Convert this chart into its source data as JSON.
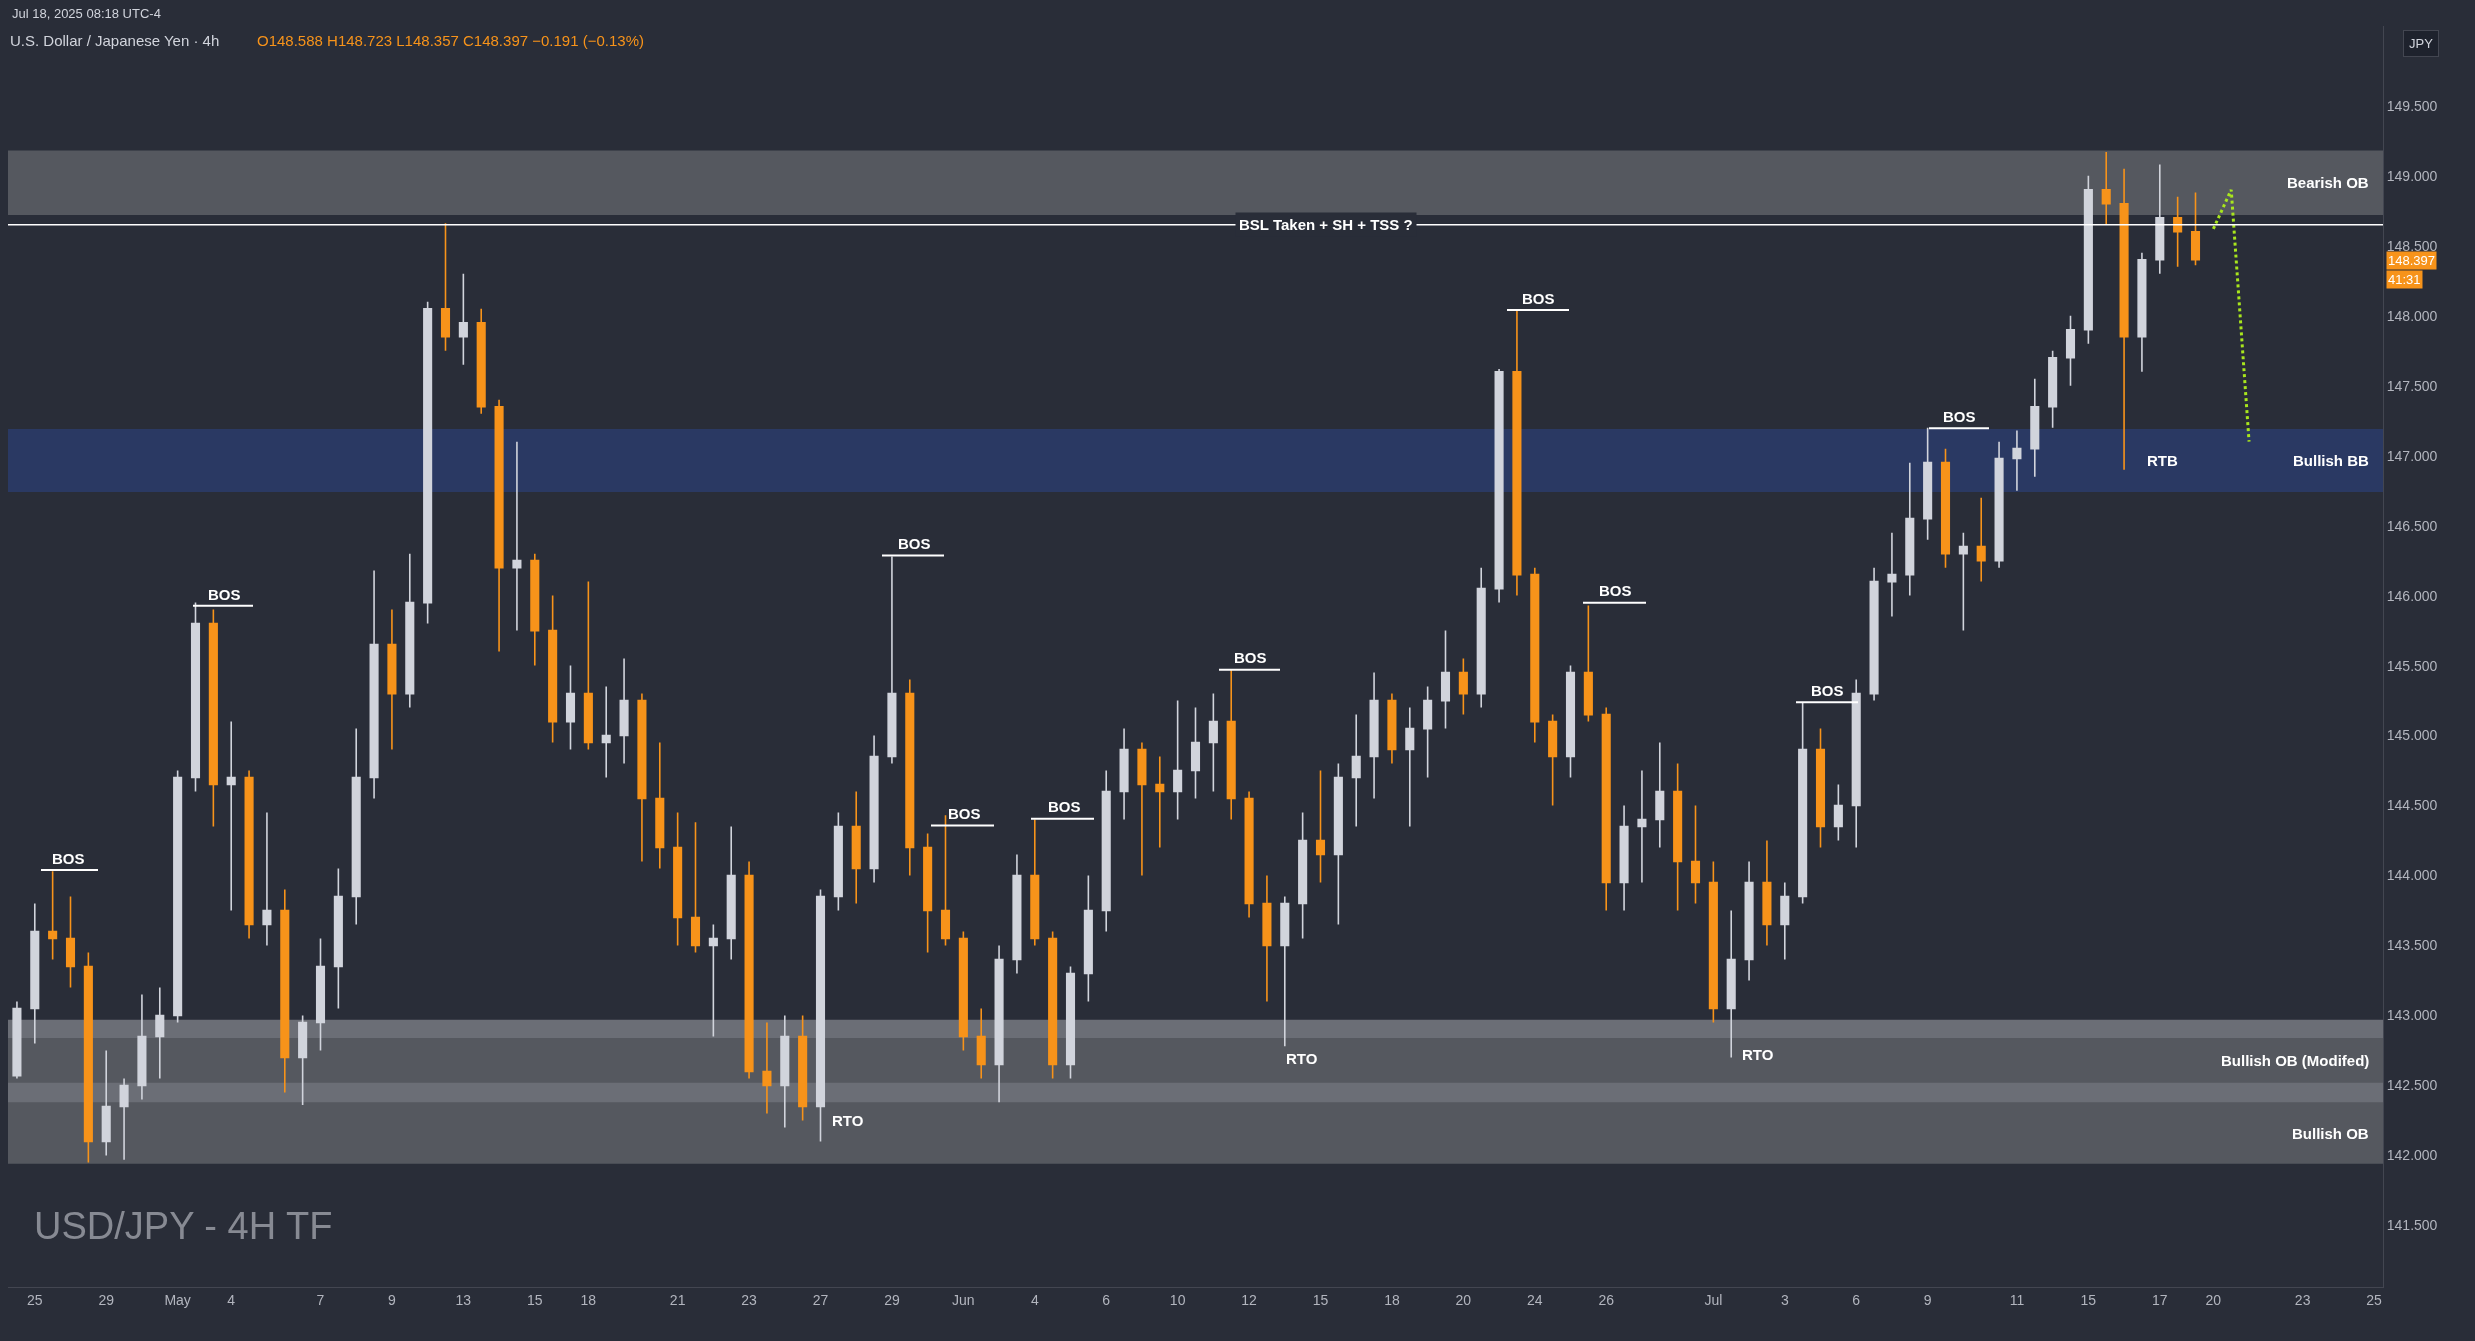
{
  "chart_data": {
    "type": "candlestick",
    "title": "U.S. Dollar / Japanese Yen · 4h",
    "subtitle": "O148.588 H148.723 L148.357 C148.397 −0.191 (−0.13%)",
    "categories": [
      null,
      "25",
      null,
      null,
      null,
      "29",
      null,
      null,
      null,
      "May",
      null,
      null,
      "4",
      null,
      null,
      null,
      null,
      "7",
      null,
      null,
      null,
      "9",
      null,
      null,
      null,
      "13",
      null,
      null,
      null,
      "15",
      null,
      null,
      "18",
      null,
      null,
      null,
      null,
      "21",
      null,
      null,
      null,
      "23",
      null,
      null,
      null,
      "27",
      null,
      null,
      null,
      "29",
      null,
      null,
      null,
      "Jun",
      null,
      null,
      null,
      "4",
      null,
      null,
      null,
      "6",
      null,
      null,
      null,
      "10",
      null,
      null,
      null,
      "12",
      null,
      null,
      null,
      "15",
      null,
      null,
      null,
      "18",
      null,
      null,
      null,
      "20",
      null,
      null,
      null,
      "24",
      null,
      null,
      null,
      "26",
      null,
      null,
      null,
      null,
      null,
      "Jul",
      null,
      null,
      null,
      "3",
      null,
      null,
      null,
      "6",
      null,
      null,
      null,
      "9",
      null,
      null,
      null,
      null,
      "11",
      null,
      null,
      null,
      "15",
      null,
      null,
      null,
      "17",
      null,
      null,
      "20",
      null,
      null,
      null,
      null,
      "23",
      null,
      null,
      null,
      "25"
    ],
    "ohlc": [
      [
        142.57,
        143.1,
        142.55,
        143.05
      ],
      [
        143.05,
        143.8,
        142.8,
        143.6
      ],
      [
        143.6,
        144.03,
        143.4,
        143.55
      ],
      [
        143.55,
        143.85,
        143.2,
        143.35
      ],
      [
        143.35,
        143.45,
        141.95,
        142.1
      ],
      [
        142.1,
        142.75,
        142.0,
        142.35
      ],
      [
        142.35,
        142.55,
        141.97,
        142.5
      ],
      [
        142.5,
        143.15,
        142.4,
        142.85
      ],
      [
        142.85,
        143.2,
        142.55,
        143.0
      ],
      [
        143.0,
        144.75,
        142.95,
        144.7
      ],
      [
        144.7,
        145.95,
        144.6,
        145.8
      ],
      [
        145.8,
        145.9,
        144.35,
        144.65
      ],
      [
        144.65,
        145.1,
        143.75,
        144.7
      ],
      [
        144.7,
        144.75,
        143.55,
        143.65
      ],
      [
        143.65,
        144.45,
        143.5,
        143.75
      ],
      [
        143.75,
        143.9,
        142.45,
        142.7
      ],
      [
        142.7,
        143.0,
        142.36,
        142.95
      ],
      [
        142.95,
        143.55,
        142.75,
        143.35
      ],
      [
        143.35,
        144.05,
        143.05,
        143.85
      ],
      [
        143.85,
        145.05,
        143.65,
        144.7
      ],
      [
        144.7,
        146.18,
        144.55,
        145.65
      ],
      [
        145.65,
        145.9,
        144.9,
        145.3
      ],
      [
        145.3,
        146.3,
        145.2,
        145.95
      ],
      [
        145.95,
        148.1,
        145.8,
        148.05
      ],
      [
        148.05,
        148.66,
        147.75,
        147.85
      ],
      [
        147.85,
        148.3,
        147.65,
        147.95
      ],
      [
        147.95,
        148.05,
        147.3,
        147.35
      ],
      [
        147.35,
        147.4,
        145.6,
        146.2
      ],
      [
        146.2,
        147.1,
        145.75,
        146.25
      ],
      [
        146.25,
        146.3,
        145.5,
        145.75
      ],
      [
        145.75,
        146.0,
        144.95,
        145.1
      ],
      [
        145.1,
        145.5,
        144.9,
        145.3
      ],
      [
        145.3,
        146.1,
        144.9,
        144.95
      ],
      [
        144.95,
        145.35,
        144.7,
        145.0
      ],
      [
        145.0,
        145.55,
        144.8,
        145.25
      ],
      [
        145.25,
        145.3,
        144.1,
        144.55
      ],
      [
        144.55,
        144.95,
        144.05,
        144.2
      ],
      [
        144.2,
        144.45,
        143.5,
        143.7
      ],
      [
        143.7,
        144.38,
        143.45,
        143.5
      ],
      [
        143.5,
        143.65,
        142.85,
        143.55
      ],
      [
        143.55,
        144.35,
        143.4,
        144.0
      ],
      [
        144.0,
        144.1,
        142.55,
        142.6
      ],
      [
        142.6,
        142.95,
        142.3,
        142.5
      ],
      [
        142.5,
        143.0,
        142.2,
        142.85
      ],
      [
        142.85,
        143.0,
        142.25,
        142.35
      ],
      [
        142.35,
        143.9,
        142.1,
        143.85
      ],
      [
        143.85,
        144.45,
        143.75,
        144.35
      ],
      [
        144.35,
        144.6,
        143.8,
        144.05
      ],
      [
        144.05,
        145.0,
        143.95,
        144.85
      ],
      [
        144.85,
        146.28,
        144.8,
        145.3
      ],
      [
        145.3,
        145.4,
        144.0,
        144.2
      ],
      [
        144.2,
        144.3,
        143.45,
        143.75
      ],
      [
        143.75,
        144.43,
        143.5,
        143.55
      ],
      [
        143.55,
        143.6,
        142.75,
        142.85
      ],
      [
        142.85,
        143.05,
        142.55,
        142.65
      ],
      [
        142.65,
        143.5,
        142.38,
        143.4
      ],
      [
        143.4,
        144.15,
        143.3,
        144.0
      ],
      [
        144.0,
        144.4,
        143.5,
        143.55
      ],
      [
        143.55,
        143.6,
        142.55,
        142.65
      ],
      [
        142.65,
        143.35,
        142.55,
        143.3
      ],
      [
        143.3,
        144.0,
        143.1,
        143.75
      ],
      [
        143.75,
        144.75,
        143.6,
        144.6
      ],
      [
        144.6,
        145.05,
        144.4,
        144.9
      ],
      [
        144.9,
        144.95,
        144.0,
        144.65
      ],
      [
        144.65,
        144.85,
        144.2,
        144.6
      ],
      [
        144.6,
        145.25,
        144.4,
        144.75
      ],
      [
        144.75,
        145.2,
        144.55,
        144.95
      ],
      [
        144.95,
        145.3,
        144.6,
        145.1
      ],
      [
        145.1,
        145.47,
        144.4,
        144.55
      ],
      [
        144.55,
        144.6,
        143.7,
        143.8
      ],
      [
        143.8,
        144.0,
        143.1,
        143.5
      ],
      [
        143.5,
        143.85,
        142.78,
        143.8
      ],
      [
        143.8,
        144.45,
        143.55,
        144.25
      ],
      [
        144.25,
        144.75,
        143.95,
        144.15
      ],
      [
        144.15,
        144.8,
        143.65,
        144.7
      ],
      [
        144.7,
        145.15,
        144.35,
        144.85
      ],
      [
        144.85,
        145.45,
        144.55,
        145.25
      ],
      [
        145.25,
        145.3,
        144.8,
        144.9
      ],
      [
        144.9,
        145.2,
        144.35,
        145.05
      ],
      [
        145.05,
        145.35,
        144.7,
        145.25
      ],
      [
        145.25,
        145.75,
        145.05,
        145.45
      ],
      [
        145.45,
        145.55,
        145.15,
        145.3
      ],
      [
        145.3,
        146.2,
        145.2,
        146.05
      ],
      [
        146.05,
        147.62,
        145.95,
        147.6
      ],
      [
        147.6,
        148.04,
        146.0,
        146.15
      ],
      [
        146.15,
        146.2,
        144.95,
        145.1
      ],
      [
        145.1,
        145.15,
        144.5,
        144.85
      ],
      [
        144.85,
        145.5,
        144.7,
        145.45
      ],
      [
        145.45,
        145.93,
        145.1,
        145.15
      ],
      [
        145.15,
        145.2,
        143.75,
        143.95
      ],
      [
        143.95,
        144.5,
        143.75,
        144.35
      ],
      [
        144.35,
        144.75,
        143.95,
        144.4
      ],
      [
        144.4,
        144.95,
        144.2,
        144.6
      ],
      [
        144.6,
        144.8,
        143.75,
        144.1
      ],
      [
        144.1,
        144.5,
        143.8,
        143.95
      ],
      [
        143.95,
        144.1,
        142.95,
        143.05
      ],
      [
        143.05,
        143.75,
        142.7,
        143.4
      ],
      [
        143.4,
        144.1,
        143.25,
        143.95
      ],
      [
        143.95,
        144.25,
        143.5,
        143.65
      ],
      [
        143.65,
        143.95,
        143.4,
        143.85
      ],
      [
        143.85,
        145.24,
        143.8,
        144.9
      ],
      [
        144.9,
        145.05,
        144.2,
        144.35
      ],
      [
        144.35,
        144.65,
        144.25,
        144.5
      ],
      [
        144.5,
        145.4,
        144.2,
        145.3
      ],
      [
        145.3,
        146.2,
        145.25,
        146.1
      ],
      [
        146.1,
        146.45,
        145.85,
        146.15
      ],
      [
        146.15,
        146.95,
        146.0,
        146.55
      ],
      [
        146.55,
        147.2,
        146.4,
        146.95
      ],
      [
        146.95,
        147.05,
        146.2,
        146.3
      ],
      [
        146.3,
        146.45,
        145.75,
        146.35
      ],
      [
        146.35,
        146.7,
        146.1,
        146.25
      ],
      [
        146.25,
        147.1,
        146.2,
        146.98
      ],
      [
        146.98,
        147.18,
        146.75,
        147.05
      ],
      [
        147.05,
        147.55,
        146.85,
        147.35
      ],
      [
        147.35,
        147.75,
        147.2,
        147.7
      ],
      [
        147.7,
        148.0,
        147.5,
        147.9
      ],
      [
        147.9,
        149.0,
        147.8,
        148.9
      ],
      [
        148.9,
        149.17,
        148.65,
        148.8
      ],
      [
        148.8,
        149.05,
        146.9,
        147.85
      ],
      [
        147.85,
        148.45,
        147.6,
        148.4
      ],
      [
        148.4,
        149.08,
        148.3,
        148.7
      ],
      [
        148.7,
        148.85,
        148.35,
        148.6
      ],
      [
        148.6,
        148.88,
        148.36,
        148.4
      ],
      null,
      null,
      null,
      null,
      null,
      null,
      null,
      null,
      null,
      null
    ],
    "colors": [
      "#d1d4dc",
      "#d1d4dc",
      "#f7931a",
      "#f7931a",
      "#f7931a",
      "#d1d4dc",
      "#d1d4dc",
      "#d1d4dc",
      "#d1d4dc",
      "#d1d4dc",
      "#d1d4dc",
      "#f7931a",
      "#d1d4dc",
      "#f7931a",
      "#d1d4dc",
      "#f7931a",
      "#d1d4dc",
      "#d1d4dc",
      "#d1d4dc",
      "#d1d4dc",
      "#d1d4dc",
      "#f7931a",
      "#d1d4dc",
      "#d1d4dc",
      "#f7931a",
      "#d1d4dc",
      "#f7931a",
      "#f7931a",
      "#d1d4dc",
      "#f7931a",
      "#f7931a",
      "#d1d4dc",
      "#f7931a",
      "#d1d4dc",
      "#d1d4dc",
      "#f7931a",
      "#f7931a",
      "#f7931a",
      "#f7931a",
      "#d1d4dc",
      "#d1d4dc",
      "#f7931a",
      "#f7931a",
      "#d1d4dc",
      "#f7931a",
      "#d1d4dc",
      "#d1d4dc",
      "#f7931a",
      "#d1d4dc",
      "#d1d4dc",
      "#f7931a",
      "#f7931a",
      "#f7931a",
      "#f7931a",
      "#f7931a",
      "#d1d4dc",
      "#d1d4dc",
      "#f7931a",
      "#f7931a",
      "#d1d4dc",
      "#d1d4dc",
      "#d1d4dc",
      "#d1d4dc",
      "#f7931a",
      "#f7931a",
      "#d1d4dc",
      "#d1d4dc",
      "#d1d4dc",
      "#f7931a",
      "#f7931a",
      "#f7931a",
      "#d1d4dc",
      "#d1d4dc",
      "#f7931a",
      "#d1d4dc",
      "#d1d4dc",
      "#d1d4dc",
      "#f7931a",
      "#d1d4dc",
      "#d1d4dc",
      "#d1d4dc",
      "#f7931a",
      "#d1d4dc",
      "#d1d4dc",
      "#f7931a",
      "#f7931a",
      "#f7931a",
      "#d1d4dc",
      "#f7931a",
      "#f7931a",
      "#d1d4dc",
      "#d1d4dc",
      "#d1d4dc",
      "#f7931a",
      "#f7931a",
      "#f7931a",
      "#d1d4dc",
      "#d1d4dc",
      "#f7931a",
      "#d1d4dc",
      "#d1d4dc",
      "#f7931a",
      "#d1d4dc",
      "#d1d4dc",
      "#d1d4dc",
      "#d1d4dc",
      "#d1d4dc",
      "#d1d4dc",
      "#f7931a",
      "#d1d4dc",
      "#f7931a",
      "#d1d4dc",
      "#d1d4dc",
      "#d1d4dc",
      "#d1d4dc",
      "#d1d4dc",
      "#d1d4dc",
      "#f7931a",
      "#f7931a",
      "#d1d4dc",
      "#d1d4dc",
      "#f7931a",
      "#f7931a",
      null,
      null,
      null,
      null,
      null,
      null,
      null,
      null,
      null,
      null
    ],
    "series": [
      {
        "type": "line",
        "color": "#a8e61d",
        "line_style": "dotted",
        "values": [
          null,
          null,
          null,
          null,
          null,
          null,
          null,
          null,
          null,
          null,
          null,
          null,
          null,
          null,
          null,
          null,
          null,
          null,
          null,
          null,
          null,
          null,
          null,
          null,
          null,
          null,
          null,
          null,
          null,
          null,
          null,
          null,
          null,
          null,
          null,
          null,
          null,
          null,
          null,
          null,
          null,
          null,
          null,
          null,
          null,
          null,
          null,
          null,
          null,
          null,
          null,
          null,
          null,
          null,
          null,
          null,
          null,
          null,
          null,
          null,
          null,
          null,
          null,
          null,
          null,
          null,
          null,
          null,
          null,
          null,
          null,
          null,
          null,
          null,
          null,
          null,
          null,
          null,
          null,
          null,
          null,
          null,
          null,
          null,
          null,
          null,
          null,
          null,
          null,
          null,
          null,
          null,
          null,
          null,
          null,
          null,
          null,
          null,
          null,
          null,
          null,
          null,
          null,
          null,
          null,
          null,
          null,
          null,
          null,
          null,
          null,
          null,
          null,
          null,
          null,
          null,
          null,
          null,
          null,
          null,
          null,
          null,
          null,
          148.62,
          148.9,
          147.1,
          null,
          null,
          null,
          null,
          null,
          null,
          null
        ]
      }
    ],
    "ylim": [
      141.06,
      150.07
    ],
    "yticks": [
      {
        "value": 141.5,
        "label": "141.500"
      },
      {
        "value": 142.0,
        "label": "142.000"
      },
      {
        "value": 142.5,
        "label": "142.500"
      },
      {
        "value": 143.0,
        "label": "143.000"
      },
      {
        "value": 143.5,
        "label": "143.500"
      },
      {
        "value": 144.0,
        "label": "144.000"
      },
      {
        "value": 144.5,
        "label": "144.500"
      },
      {
        "value": 145.0,
        "label": "145.000"
      },
      {
        "value": 145.5,
        "label": "145.500"
      },
      {
        "value": 146.0,
        "label": "146.000"
      },
      {
        "value": 146.5,
        "label": "146.500"
      },
      {
        "value": 147.0,
        "label": "147.000"
      },
      {
        "value": 147.5,
        "label": "147.500"
      },
      {
        "value": 148.0,
        "label": "148.000"
      },
      {
        "value": 148.5,
        "label": "148.500"
      },
      {
        "value": 149.0,
        "label": "149.000"
      },
      {
        "value": 149.5,
        "label": "149.500"
      }
    ],
    "bands": [
      {
        "axis": "y",
        "from": 142.11,
        "to": 142.97,
        "color": "#6b6e76"
      },
      {
        "axis": "y",
        "from": 148.72,
        "to": 149.18,
        "label": "Bearish OB",
        "color": "#55585f"
      },
      {
        "axis": "y",
        "from": 146.74,
        "to": 147.19,
        "label": "Bullish BB",
        "color": "#2a3963"
      },
      {
        "axis": "y",
        "from": 142.52,
        "to": 142.84,
        "label": "Bullish OB (Modifed)",
        "color": "#55585f"
      },
      {
        "axis": "y",
        "from": 141.94,
        "to": 142.38,
        "label": "Bullish OB",
        "color": "#55585f"
      }
    ],
    "ref_lines": [
      {
        "axis": "y",
        "value": 148.65,
        "label": "BSL Taken + SH + TSS ?",
        "color": "#ffffff"
      }
    ],
    "annotations": [
      "Jul 18, 2025 08:18 UTC-4",
      "USD/JPY - 4H TF",
      "JPY",
      "148.397",
      "41:31",
      "BOS",
      "BOS",
      "BOS",
      "BOS",
      "BOS",
      "BOS",
      "BOS",
      "BOS",
      "BOS",
      "BOS",
      "RTO",
      "RTO",
      "RTO",
      "RTB"
    ]
  }
}
